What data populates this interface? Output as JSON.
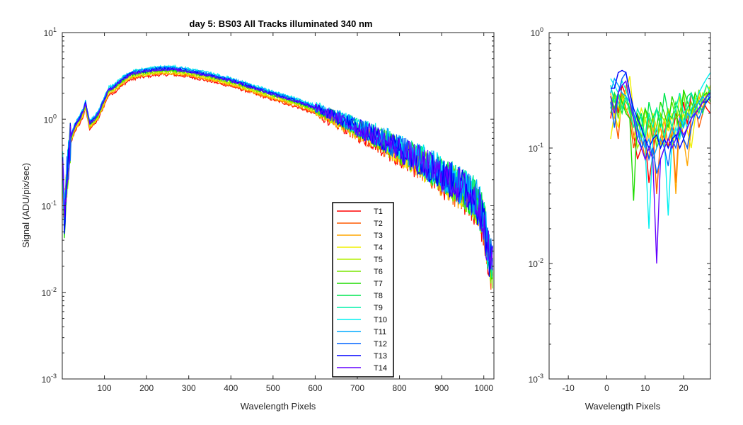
{
  "chart_data": [
    {
      "type": "line",
      "title": "day 5: BS03   All Tracks illuminated   340 nm",
      "xlabel": "Wavelength Pixels",
      "ylabel": "Signal (ADU/pix/sec)",
      "xlim": [
        0,
        1024
      ],
      "ylim": [
        0.001,
        10
      ],
      "yscale": "log",
      "xticks": [
        100,
        200,
        300,
        400,
        500,
        600,
        700,
        800,
        900,
        1000
      ],
      "yticks": [
        {
          "value": 0.001,
          "base": "10",
          "exp": "-3"
        },
        {
          "value": 0.01,
          "base": "10",
          "exp": "-2"
        },
        {
          "value": 0.1,
          "base": "10",
          "exp": "-1"
        },
        {
          "value": 1,
          "base": "10",
          "exp": "0"
        },
        {
          "value": 10,
          "base": "10",
          "exp": "1"
        }
      ],
      "legend": {
        "position": "lower-center-right",
        "entries": [
          "T1",
          "T2",
          "T3",
          "T4",
          "T5",
          "T6",
          "T7",
          "T8",
          "T9",
          "T10",
          "T11",
          "T12",
          "T13",
          "T14"
        ]
      },
      "envelope": {
        "x": [
          1,
          5,
          10,
          20,
          30,
          40,
          50,
          55,
          58,
          65,
          75,
          85,
          100,
          110,
          125,
          140,
          160,
          180,
          200,
          220,
          240,
          260,
          280,
          300,
          350,
          400,
          450,
          500,
          550,
          600,
          650,
          700,
          750,
          800,
          850,
          900,
          950,
          980,
          1000,
          1010,
          1020
        ],
        "y": [
          0.25,
          0.07,
          0.2,
          0.6,
          0.85,
          1.0,
          1.25,
          1.55,
          1.3,
          0.9,
          1.0,
          1.15,
          1.7,
          2.2,
          2.4,
          2.8,
          3.3,
          3.5,
          3.6,
          3.75,
          3.8,
          3.8,
          3.7,
          3.6,
          3.2,
          2.8,
          2.35,
          1.95,
          1.65,
          1.35,
          1.05,
          0.8,
          0.62,
          0.45,
          0.33,
          0.23,
          0.16,
          0.12,
          0.07,
          0.03,
          0.02
        ]
      },
      "series": [
        {
          "name": "T1",
          "color": "#ff0000",
          "scale": 0.86
        },
        {
          "name": "T2",
          "color": "#ff5a00",
          "scale": 0.88
        },
        {
          "name": "T3",
          "color": "#ffa500",
          "scale": 0.9
        },
        {
          "name": "T4",
          "color": "#f0f000",
          "scale": 0.92
        },
        {
          "name": "T5",
          "color": "#b4f000",
          "scale": 0.94
        },
        {
          "name": "T6",
          "color": "#78e600",
          "scale": 0.96
        },
        {
          "name": "T7",
          "color": "#1edc00",
          "scale": 0.98
        },
        {
          "name": "T8",
          "color": "#00e650",
          "scale": 1.0
        },
        {
          "name": "T9",
          "color": "#00f0aa",
          "scale": 1.03
        },
        {
          "name": "T10",
          "color": "#00f0f0",
          "scale": 1.06
        },
        {
          "name": "T11",
          "color": "#00aaff",
          "scale": 1.04
        },
        {
          "name": "T12",
          "color": "#0064ff",
          "scale": 1.02
        },
        {
          "name": "T13",
          "color": "#0000ff",
          "scale": 1.0
        },
        {
          "name": "T14",
          "color": "#6400ff",
          "scale": 0.99
        }
      ]
    },
    {
      "type": "line",
      "title": "",
      "xlabel": "Wavelength Pixels",
      "ylabel": "",
      "xlim": [
        -15,
        27
      ],
      "ylim": [
        0.001,
        1
      ],
      "yscale": "log",
      "xticks": [
        -10,
        0,
        10,
        20
      ],
      "yticks": [
        {
          "value": 0.001,
          "base": "10",
          "exp": "-3"
        },
        {
          "value": 0.01,
          "base": "10",
          "exp": "-2"
        },
        {
          "value": 0.1,
          "base": "10",
          "exp": "-1"
        },
        {
          "value": 1,
          "base": "10",
          "exp": "0"
        }
      ],
      "series": [
        {
          "name": "T1",
          "color": "#ff0000",
          "x": [
            1,
            2,
            3,
            4,
            5,
            6,
            7,
            8,
            9,
            10,
            11,
            12,
            13,
            14,
            15,
            16,
            17,
            18,
            19,
            20,
            21,
            22,
            23,
            24,
            25,
            26,
            27
          ],
          "y": [
            0.18,
            0.3,
            0.2,
            0.35,
            0.28,
            0.2,
            0.13,
            0.08,
            0.1,
            0.12,
            0.05,
            0.09,
            0.15,
            0.1,
            0.14,
            0.18,
            0.12,
            0.2,
            0.15,
            0.25,
            0.16,
            0.3,
            0.22,
            0.2,
            0.26,
            0.22,
            0.2
          ]
        },
        {
          "name": "T2",
          "color": "#ff5a00",
          "x": [
            1,
            2,
            3,
            4,
            5,
            6,
            7,
            8,
            9,
            10,
            11,
            12,
            13,
            14,
            15,
            16,
            17,
            18,
            19,
            20,
            21,
            22,
            23,
            24,
            25,
            26,
            27
          ],
          "y": [
            0.25,
            0.2,
            0.12,
            0.3,
            0.22,
            0.18,
            0.1,
            0.15,
            0.12,
            0.08,
            0.2,
            0.15,
            0.04,
            0.12,
            0.18,
            0.1,
            0.16,
            0.05,
            0.2,
            0.12,
            0.1,
            0.18,
            0.25,
            0.15,
            0.2,
            0.26,
            0.24
          ]
        },
        {
          "name": "T3",
          "color": "#ffa500",
          "x": [
            1,
            2,
            3,
            4,
            5,
            6,
            7,
            8,
            9,
            10,
            11,
            12,
            13,
            14,
            15,
            16,
            17,
            18,
            19,
            20,
            21,
            22,
            23,
            24,
            25,
            26,
            27
          ],
          "y": [
            0.3,
            0.18,
            0.28,
            0.22,
            0.35,
            0.25,
            0.12,
            0.18,
            0.15,
            0.1,
            0.08,
            0.2,
            0.12,
            0.15,
            0.1,
            0.22,
            0.15,
            0.04,
            0.18,
            0.12,
            0.07,
            0.15,
            0.2,
            0.28,
            0.22,
            0.3,
            0.25
          ]
        },
        {
          "name": "T4",
          "color": "#f0f000",
          "x": [
            1,
            2,
            3,
            4,
            5,
            6,
            7,
            8,
            9,
            10,
            11,
            12,
            13,
            14,
            15,
            16,
            17,
            18,
            19,
            20,
            21,
            22,
            23,
            24,
            25,
            26,
            27
          ],
          "y": [
            0.12,
            0.2,
            0.15,
            0.25,
            0.3,
            0.42,
            0.2,
            0.15,
            0.22,
            0.18,
            0.12,
            0.2,
            0.15,
            0.1,
            0.18,
            0.14,
            0.2,
            0.12,
            0.15,
            0.2,
            0.14,
            0.1,
            0.18,
            0.3,
            0.25,
            0.35,
            0.32
          ]
        },
        {
          "name": "T5",
          "color": "#b4f000",
          "x": [
            1,
            2,
            3,
            4,
            5,
            6,
            7,
            8,
            9,
            10,
            11,
            12,
            13,
            14,
            15,
            16,
            17,
            18,
            19,
            20,
            21,
            22,
            23,
            24,
            25,
            26,
            27
          ],
          "y": [
            0.25,
            0.3,
            0.22,
            0.28,
            0.2,
            0.25,
            0.18,
            0.1,
            0.12,
            0.18,
            0.2,
            0.15,
            0.12,
            0.2,
            0.17,
            0.22,
            0.1,
            0.15,
            0.28,
            0.15,
            0.22,
            0.18,
            0.28,
            0.2,
            0.3,
            0.28,
            0.35
          ]
        },
        {
          "name": "T6",
          "color": "#78e600",
          "x": [
            1,
            2,
            3,
            4,
            5,
            6,
            7,
            8,
            9,
            10,
            11,
            12,
            13,
            14,
            15,
            16,
            17,
            18,
            19,
            20,
            21,
            22,
            23,
            24,
            25,
            26,
            27
          ],
          "y": [
            0.2,
            0.28,
            0.18,
            0.3,
            0.25,
            0.22,
            0.15,
            0.2,
            0.12,
            0.22,
            0.15,
            0.18,
            0.1,
            0.2,
            0.12,
            0.18,
            0.25,
            0.18,
            0.2,
            0.3,
            0.18,
            0.25,
            0.2,
            0.32,
            0.25,
            0.28,
            0.3
          ]
        },
        {
          "name": "T7",
          "color": "#1edc00",
          "x": [
            1,
            2,
            3,
            4,
            5,
            6,
            7,
            8,
            9,
            10,
            11,
            12,
            13,
            14,
            15,
            16,
            17,
            18,
            19,
            20,
            21,
            22,
            23,
            24,
            25,
            26,
            27
          ],
          "y": [
            0.28,
            0.22,
            0.3,
            0.25,
            0.2,
            0.18,
            0.035,
            0.2,
            0.15,
            0.22,
            0.18,
            0.12,
            0.15,
            0.25,
            0.2,
            0.15,
            0.28,
            0.22,
            0.12,
            0.32,
            0.25,
            0.2,
            0.3,
            0.25,
            0.28,
            0.3,
            0.25
          ]
        },
        {
          "name": "T8",
          "color": "#00e650",
          "x": [
            1,
            2,
            3,
            4,
            5,
            6,
            7,
            8,
            9,
            10,
            11,
            12,
            13,
            14,
            15,
            16,
            17,
            18,
            19,
            20,
            21,
            22,
            23,
            24,
            25,
            26,
            27
          ],
          "y": [
            0.22,
            0.3,
            0.25,
            0.2,
            0.28,
            0.22,
            0.18,
            0.15,
            0.2,
            0.12,
            0.25,
            0.18,
            0.22,
            0.15,
            0.3,
            0.2,
            0.18,
            0.25,
            0.2,
            0.15,
            0.28,
            0.3,
            0.22,
            0.25,
            0.2,
            0.28,
            0.32
          ]
        },
        {
          "name": "T9",
          "color": "#00f0aa",
          "x": [
            1,
            2,
            3,
            4,
            5,
            6,
            7,
            8,
            9,
            10,
            11,
            12,
            13,
            14,
            15,
            16,
            17,
            18,
            19,
            20,
            21,
            22,
            23,
            24,
            25,
            26,
            27
          ],
          "y": [
            0.35,
            0.25,
            0.3,
            0.22,
            0.28,
            0.2,
            0.15,
            0.22,
            0.18,
            0.12,
            0.2,
            0.15,
            0.22,
            0.18,
            0.12,
            0.2,
            0.15,
            0.22,
            0.3,
            0.2,
            0.22,
            0.3,
            0.25,
            0.2,
            0.28,
            0.35,
            0.3
          ]
        },
        {
          "name": "T10",
          "color": "#00f0f0",
          "x": [
            1,
            2,
            3,
            4,
            5,
            6,
            7,
            8,
            9,
            10,
            11,
            12,
            13,
            14,
            15,
            16,
            17,
            18,
            19,
            20,
            21,
            22,
            23,
            24,
            25,
            26,
            27
          ],
          "y": [
            0.4,
            0.35,
            0.3,
            0.38,
            0.32,
            0.25,
            0.2,
            0.12,
            0.15,
            0.1,
            0.02,
            0.12,
            0.15,
            0.1,
            0.12,
            0.026,
            0.12,
            0.15,
            0.12,
            0.18,
            0.15,
            0.22,
            0.25,
            0.3,
            0.35,
            0.4,
            0.45
          ]
        },
        {
          "name": "T11",
          "color": "#00aaff",
          "x": [
            1,
            2,
            3,
            4,
            5,
            6,
            7,
            8,
            9,
            10,
            11,
            12,
            13,
            14,
            15,
            16,
            17,
            18,
            19,
            20,
            21,
            22,
            23,
            24,
            25,
            26,
            27
          ],
          "y": [
            0.3,
            0.4,
            0.35,
            0.3,
            0.28,
            0.25,
            0.2,
            0.15,
            0.12,
            0.1,
            0.12,
            0.08,
            0.1,
            0.12,
            0.1,
            0.12,
            0.15,
            0.12,
            0.18,
            0.15,
            0.2,
            0.18,
            0.22,
            0.25,
            0.28,
            0.25,
            0.3
          ]
        },
        {
          "name": "T12",
          "color": "#0064ff",
          "x": [
            1,
            2,
            3,
            4,
            5,
            6,
            7,
            8,
            9,
            10,
            11,
            12,
            13,
            14,
            15,
            16,
            17,
            18,
            19,
            20,
            21,
            22,
            23,
            24,
            25,
            26,
            27
          ],
          "y": [
            0.25,
            0.15,
            0.3,
            0.4,
            0.45,
            0.3,
            0.2,
            0.15,
            0.1,
            0.12,
            0.08,
            0.1,
            0.06,
            0.08,
            0.1,
            0.07,
            0.12,
            0.1,
            0.15,
            0.12,
            0.1,
            0.15,
            0.2,
            0.18,
            0.22,
            0.25,
            0.28
          ]
        },
        {
          "name": "T13",
          "color": "#0000ff",
          "x": [
            1,
            2,
            3,
            4,
            5,
            6,
            7,
            8,
            9,
            10,
            11,
            12,
            13,
            14,
            15,
            16,
            17,
            18,
            19,
            20,
            21,
            22,
            23,
            24,
            25,
            26,
            27
          ],
          "y": [
            0.33,
            0.33,
            0.45,
            0.47,
            0.45,
            0.3,
            0.22,
            0.18,
            0.15,
            0.12,
            0.1,
            0.12,
            0.13,
            0.1,
            0.12,
            0.1,
            0.12,
            0.13,
            0.1,
            0.12,
            0.15,
            0.18,
            0.2,
            0.22,
            0.25,
            0.25,
            0.28
          ]
        },
        {
          "name": "T14",
          "color": "#6400ff",
          "x": [
            1,
            2,
            3,
            4,
            5,
            6,
            7,
            8,
            9,
            10,
            11,
            12,
            13,
            14,
            15,
            16,
            17,
            18,
            19,
            20,
            21,
            22,
            23,
            24,
            25,
            26,
            27
          ],
          "y": [
            0.28,
            0.2,
            0.3,
            0.35,
            0.38,
            0.25,
            0.18,
            0.12,
            0.1,
            0.08,
            0.1,
            0.08,
            0.01,
            0.08,
            0.1,
            0.12,
            0.1,
            0.12,
            0.15,
            0.13,
            0.15,
            0.18,
            0.2,
            0.22,
            0.25,
            0.28,
            0.3
          ]
        }
      ]
    }
  ]
}
